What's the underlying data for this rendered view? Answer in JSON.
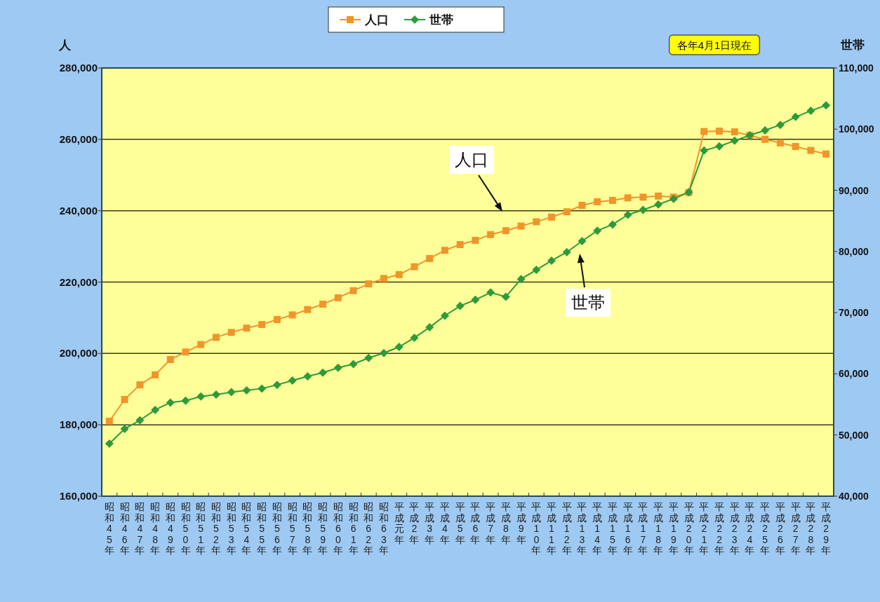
{
  "chart_data": {
    "type": "line",
    "ylabel": "人",
    "y2label": "世帯",
    "categories": [
      "昭和45年",
      "昭和46年",
      "昭和47年",
      "昭和48年",
      "昭和49年",
      "昭和50年",
      "昭和51年",
      "昭和52年",
      "昭和53年",
      "昭和54年",
      "昭和55年",
      "昭和56年",
      "昭和57年",
      "昭和58年",
      "昭和59年",
      "昭和60年",
      "昭和61年",
      "昭和62年",
      "昭和63年",
      "平成元年",
      "平成2年",
      "平成3年",
      "平成4年",
      "平成5年",
      "平成6年",
      "平成7年",
      "平成8年",
      "平成9年",
      "平成10年",
      "平成11年",
      "平成12年",
      "平成13年",
      "平成14年",
      "平成15年",
      "平成16年",
      "平成17年",
      "平成18年",
      "平成19年",
      "平成20年",
      "平成21年",
      "平成22年",
      "平成23年",
      "平成24年",
      "平成25年",
      "平成26年",
      "平成27年",
      "平成28年",
      "平成29年"
    ],
    "series": [
      {
        "name": "人口",
        "color": "#f0952a",
        "marker": "square",
        "values": [
          181000,
          187100,
          191200,
          194000,
          198300,
          200400,
          202500,
          204500,
          205900,
          207100,
          208100,
          209500,
          210800,
          212300,
          213800,
          215600,
          217600,
          219500,
          221000,
          222100,
          224300,
          226600,
          228900,
          230500,
          231700,
          233300,
          234400,
          235700,
          236900,
          238200,
          239700,
          241500,
          242500,
          242900,
          243600,
          243800,
          244100,
          243800,
          245100,
          262200,
          262300,
          262100,
          261100,
          260000,
          259000,
          258000,
          256900,
          255900
        ]
      },
      {
        "name": "世帯",
        "color": "#2e9a3c",
        "marker": "diamond",
        "axis": "y2",
        "values": [
          48600,
          51000,
          52400,
          54100,
          55300,
          55600,
          56300,
          56600,
          57000,
          57300,
          57600,
          58200,
          58900,
          59600,
          60200,
          61000,
          61600,
          62600,
          63400,
          64400,
          65900,
          67600,
          69500,
          71100,
          72100,
          73300,
          72600,
          75500,
          77000,
          78500,
          79900,
          81700,
          83400,
          84400,
          86000,
          86800,
          87700,
          88600,
          89700,
          96500,
          97200,
          98100,
          99000,
          99800,
          100700,
          102000,
          103000,
          103900
        ]
      }
    ],
    "ylim": [
      160000,
      280000
    ],
    "yticks": [
      {
        "value": 160000,
        "label": "160,000"
      },
      {
        "value": 180000,
        "label": "180,000"
      },
      {
        "value": 200000,
        "label": "200,000"
      },
      {
        "value": 220000,
        "label": "220,000"
      },
      {
        "value": 240000,
        "label": "240,000"
      },
      {
        "value": 260000,
        "label": "260,000"
      },
      {
        "value": 280000,
        "label": "280,000"
      }
    ],
    "y2lim": [
      40000,
      110000
    ],
    "y2ticks": [
      {
        "value": 40000,
        "label": "40,000"
      },
      {
        "value": 50000,
        "label": "50,000"
      },
      {
        "value": 60000,
        "label": "60,000"
      },
      {
        "value": 70000,
        "label": "70,000"
      },
      {
        "value": 80000,
        "label": "80,000"
      },
      {
        "value": 90000,
        "label": "90,000"
      },
      {
        "value": 100000,
        "label": "100,000"
      },
      {
        "value": 110000,
        "label": "110,000"
      }
    ],
    "grid": "y",
    "legend": "top",
    "line_style": "solid",
    "annotations": [
      "人口",
      "世帯",
      "各年4月1日現在"
    ]
  }
}
